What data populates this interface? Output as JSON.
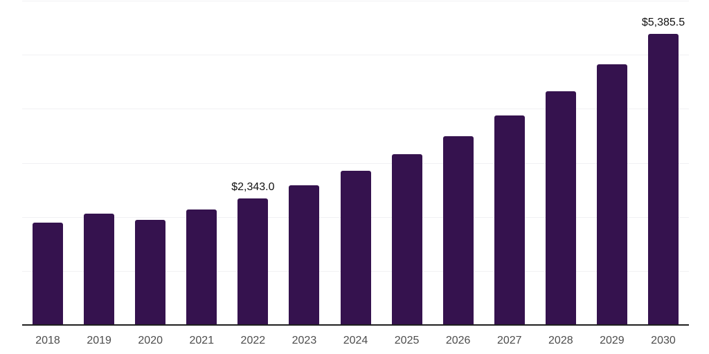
{
  "chart_data": {
    "type": "bar",
    "title": "",
    "xlabel": "",
    "ylabel": "",
    "categories": [
      "2018",
      "2019",
      "2020",
      "2021",
      "2022",
      "2023",
      "2024",
      "2025",
      "2026",
      "2027",
      "2028",
      "2029",
      "2030"
    ],
    "values": [
      1895,
      2060,
      1945,
      2135,
      2343.0,
      2585,
      2850,
      3160,
      3490,
      3875,
      4320,
      4820,
      5385.5
    ],
    "data_labels": {
      "2022": "$2,343.0",
      "2030": "$5,385.5"
    },
    "ylim": [
      0,
      6000
    ],
    "gridline_interval": 1000,
    "grid": "horizontal",
    "legend_position": "none",
    "value_prefix": "$"
  },
  "colors": {
    "bar": "#35124E",
    "gridline": "#F1F1F3",
    "axis_line": "#1F1F1F",
    "tick_label": "#4D4D4D",
    "data_label": "#111111",
    "background": "#FFFFFF"
  }
}
